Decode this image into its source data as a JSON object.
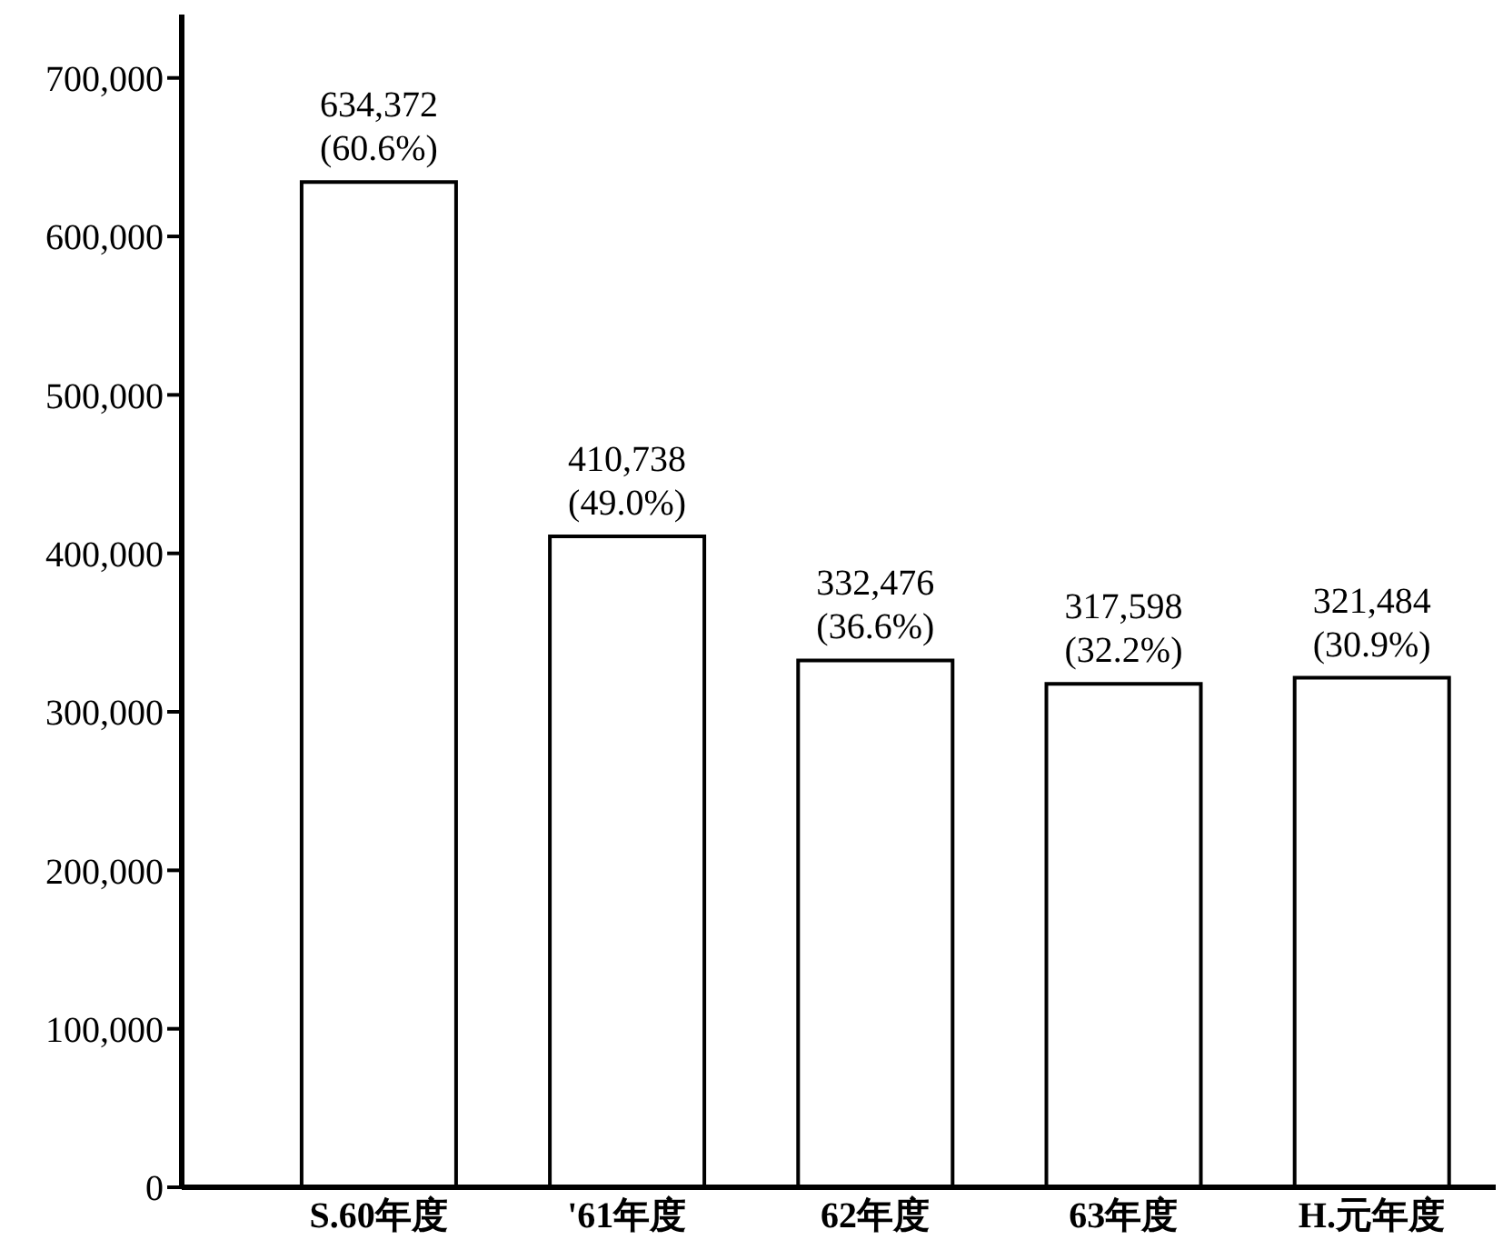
{
  "chart_data": {
    "type": "bar",
    "categories": [
      "S.60年度",
      "'61年度",
      "62年度",
      "63年度",
      "H.元年度"
    ],
    "values": [
      634372,
      410738,
      332476,
      317598,
      321484
    ],
    "value_labels": [
      "634,372 (60.6%)",
      "410,738 (49.0%)",
      "332,476 (36.6%)",
      "317,598 (32.2%)",
      "321,484 (30.9%)"
    ],
    "color": "#ffffff",
    "ylim": [
      0,
      740000
    ],
    "yticks": [
      {
        "value": 0,
        "label": "0"
      },
      {
        "value": 100000,
        "label": "100,000"
      },
      {
        "value": 200000,
        "label": "200,000"
      },
      {
        "value": 300000,
        "label": "300,000"
      },
      {
        "value": 400000,
        "label": "400,000"
      },
      {
        "value": 500000,
        "label": "500,000"
      },
      {
        "value": 600000,
        "label": "600,000"
      },
      {
        "value": 700000,
        "label": "700,000"
      }
    ],
    "grid": false,
    "legend": false
  }
}
